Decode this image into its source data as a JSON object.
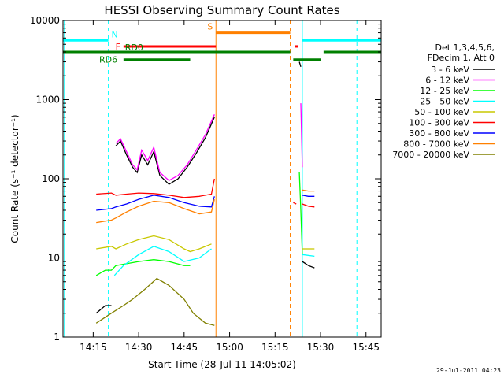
{
  "chart_data": {
    "type": "line",
    "title": "HESSI Observing Summary Count Rates",
    "xlabel": "Start Time (28-Jul-11 14:05:02)",
    "ylabel": "Count Rate (s⁻¹ detector⁻¹)",
    "y_scale": "log",
    "xlim": [
      "14:05:02",
      "15:50:00"
    ],
    "ylim": [
      1,
      10000
    ],
    "x_ticks": [
      "14:15",
      "14:30",
      "14:45",
      "15:00",
      "15:15",
      "15:30",
      "15:45"
    ],
    "y_ticks": [
      "1",
      "10",
      "100",
      "1000",
      "10000"
    ],
    "legend_title": [
      "Det 1,3,4,5,6,",
      "FDecim 1, Att 0"
    ],
    "legend_placement": "right",
    "timestamp": "29-Jul-2011 04:23",
    "series": [
      {
        "name": "3 - 6 keV",
        "color": "#000000",
        "segments": [
          [
            [
              "14:16:00",
              2
            ],
            [
              "14:19:00",
              2.5
            ],
            [
              "14:21:00",
              2.5
            ]
          ],
          [
            [
              "14:22:30",
              260
            ],
            [
              "14:24:00",
              300
            ],
            [
              "14:26:00",
              200
            ],
            [
              "14:28:00",
              140
            ],
            [
              "14:29:30",
              120
            ],
            [
              "14:31:00",
              200
            ],
            [
              "14:33:00",
              150
            ],
            [
              "14:35:00",
              220
            ],
            [
              "14:37:00",
              110
            ],
            [
              "14:40:00",
              85
            ],
            [
              "14:43:00",
              100
            ],
            [
              "14:46:00",
              140
            ],
            [
              "14:49:00",
              210
            ],
            [
              "14:52:00",
              330
            ],
            [
              "14:55:00",
              600
            ]
          ],
          [
            [
              "15:23:00",
              3000
            ],
            [
              "15:23:30",
              2600
            ]
          ],
          [
            [
              "15:24:00",
              9
            ],
            [
              "15:26:00",
              8
            ],
            [
              "15:28:00",
              7.5
            ]
          ]
        ]
      },
      {
        "name": "6 - 12 keV",
        "color": "#ff00ff",
        "segments": [
          [
            [
              "14:22:30",
              280
            ],
            [
              "14:24:00",
              320
            ],
            [
              "14:26:00",
              220
            ],
            [
              "14:28:00",
              150
            ],
            [
              "14:29:30",
              130
            ],
            [
              "14:31:00",
              230
            ],
            [
              "14:33:00",
              170
            ],
            [
              "14:35:00",
              250
            ],
            [
              "14:37:00",
              120
            ],
            [
              "14:40:00",
              95
            ],
            [
              "14:43:00",
              110
            ],
            [
              "14:46:00",
              150
            ],
            [
              "14:49:00",
              230
            ],
            [
              "14:52:00",
              360
            ],
            [
              "14:55:00",
              650
            ]
          ],
          [
            [
              "15:23:30",
              900
            ],
            [
              "15:24:00",
              140
            ]
          ]
        ]
      },
      {
        "name": "12 - 25 keV",
        "color": "#00ff00",
        "segments": [
          [
            [
              "14:16:00",
              6
            ],
            [
              "14:19:00",
              7
            ],
            [
              "14:21:00",
              7
            ],
            [
              "14:22:30",
              8
            ],
            [
              "14:30:00",
              9
            ],
            [
              "14:35:00",
              9.5
            ],
            [
              "14:40:00",
              9
            ],
            [
              "14:45:00",
              8
            ],
            [
              "14:47:00",
              8
            ]
          ],
          [
            [
              "15:23:00",
              120
            ],
            [
              "15:23:30",
              40
            ],
            [
              "15:24:00",
              11
            ]
          ]
        ]
      },
      {
        "name": "25 - 50 keV",
        "color": "#00ffff",
        "segments": [
          [
            [
              "14:22:00",
              6
            ],
            [
              "14:25:00",
              8
            ],
            [
              "14:30:00",
              11
            ],
            [
              "14:35:00",
              14
            ],
            [
              "14:40:00",
              12
            ],
            [
              "14:45:00",
              9
            ],
            [
              "14:50:00",
              10
            ],
            [
              "14:54:00",
              13
            ]
          ],
          [
            [
              "15:24:00",
              11
            ],
            [
              "15:28:00",
              10.5
            ]
          ]
        ]
      },
      {
        "name": "50 - 100 keV",
        "color": "#c8c800",
        "segments": [
          [
            [
              "14:16:00",
              13
            ],
            [
              "14:21:00",
              14
            ],
            [
              "14:22:30",
              13
            ],
            [
              "14:26:00",
              15
            ],
            [
              "14:30:00",
              17
            ],
            [
              "14:35:00",
              19
            ],
            [
              "14:40:00",
              17
            ],
            [
              "14:45:00",
              13
            ],
            [
              "14:47:00",
              12
            ],
            [
              "14:50:00",
              13
            ],
            [
              "14:54:00",
              15
            ]
          ],
          [
            [
              "15:24:00",
              13
            ],
            [
              "15:28:00",
              13
            ]
          ]
        ]
      },
      {
        "name": "100 - 300 keV",
        "color": "#ff0000",
        "segments": [
          [
            [
              "14:16:00",
              64
            ],
            [
              "14:21:00",
              66
            ],
            [
              "14:22:30",
              62
            ],
            [
              "14:26:00",
              64
            ],
            [
              "14:30:00",
              66
            ],
            [
              "14:35:00",
              65
            ],
            [
              "14:40:00",
              62
            ],
            [
              "14:45:00",
              58
            ],
            [
              "14:50:00",
              60
            ],
            [
              "14:54:00",
              64
            ],
            [
              "14:55:00",
              100
            ]
          ],
          [
            [
              "15:21:00",
              50
            ],
            [
              "15:22:00",
              48
            ]
          ],
          [
            [
              "15:24:00",
              48
            ],
            [
              "15:26:00",
              45
            ],
            [
              "15:28:00",
              44
            ]
          ]
        ]
      },
      {
        "name": "300 - 800 keV",
        "color": "#0000ff",
        "segments": [
          [
            [
              "14:16:00",
              40
            ],
            [
              "14:21:00",
              42
            ],
            [
              "14:22:30",
              44
            ],
            [
              "14:26:00",
              48
            ],
            [
              "14:30:00",
              55
            ],
            [
              "14:35:00",
              62
            ],
            [
              "14:40:00",
              58
            ],
            [
              "14:45:00",
              50
            ],
            [
              "14:50:00",
              45
            ],
            [
              "14:54:00",
              44
            ],
            [
              "14:55:00",
              60
            ]
          ],
          [
            [
              "15:24:00",
              62
            ],
            [
              "15:26:00",
              60
            ],
            [
              "15:28:00",
              60
            ]
          ]
        ]
      },
      {
        "name": "800 - 7000 keV",
        "color": "#ff8000",
        "segments": [
          [
            [
              "14:16:00",
              28
            ],
            [
              "14:21:00",
              30
            ],
            [
              "14:22:30",
              32
            ],
            [
              "14:26:00",
              38
            ],
            [
              "14:30:00",
              45
            ],
            [
              "14:35:00",
              52
            ],
            [
              "14:40:00",
              50
            ],
            [
              "14:45:00",
              42
            ],
            [
              "14:50:00",
              36
            ],
            [
              "14:54:00",
              38
            ],
            [
              "14:55:00",
              55
            ]
          ],
          [
            [
              "15:24:00",
              72
            ],
            [
              "15:26:00",
              70
            ],
            [
              "15:28:00",
              70
            ]
          ]
        ]
      },
      {
        "name": "7000 - 20000 keV",
        "color": "#808000",
        "segments": [
          [
            [
              "14:16:00",
              1.5
            ],
            [
              "14:21:00",
              2
            ],
            [
              "14:25:00",
              2.5
            ],
            [
              "14:28:00",
              3
            ],
            [
              "14:32:00",
              4
            ],
            [
              "14:36:00",
              5.5
            ],
            [
              "14:40:00",
              4.5
            ],
            [
              "14:45:00",
              3
            ],
            [
              "14:48:00",
              2
            ],
            [
              "14:52:00",
              1.5
            ],
            [
              "14:55:00",
              1.4
            ]
          ]
        ]
      }
    ],
    "state_bars": [
      {
        "label": "N",
        "color": "#00ffff",
        "y": 5600,
        "segments": [
          [
            "14:05:02",
            "14:20:00"
          ],
          [
            "15:24:00",
            "15:50:00"
          ]
        ]
      },
      {
        "label": "S",
        "color": "#ff8000",
        "y": 7000,
        "segments": [
          [
            "14:55:30",
            "15:20:00"
          ]
        ]
      },
      {
        "label": "F",
        "color": "#ff0000",
        "y": 4700,
        "segments": [
          [
            "14:25:00",
            "14:55:30"
          ],
          [
            "15:21:30",
            "15:22:30"
          ]
        ]
      },
      {
        "label": "RD0",
        "color": "#008000",
        "y": 4000,
        "segments": [
          [
            "14:05:02",
            "15:20:00"
          ],
          [
            "15:31:00",
            "15:50:00"
          ]
        ]
      },
      {
        "label": "RD6",
        "color": "#008000",
        "y": 3200,
        "segments": [
          [
            "14:25:00",
            "14:47:00"
          ],
          [
            "15:21:00",
            "15:30:00"
          ]
        ]
      }
    ],
    "vlines": [
      {
        "color": "#00ffff",
        "style": "solid",
        "x": "14:05:30"
      },
      {
        "color": "#00ffff",
        "style": "dashed",
        "x": "14:20:00"
      },
      {
        "color": "#ff8000",
        "style": "solid",
        "x": "14:55:30"
      },
      {
        "color": "#ff8000",
        "style": "dashed",
        "x": "15:20:00"
      },
      {
        "color": "#00ffff",
        "style": "solid",
        "x": "15:24:00"
      },
      {
        "color": "#00ffff",
        "style": "dashed",
        "x": "15:42:00"
      }
    ]
  }
}
